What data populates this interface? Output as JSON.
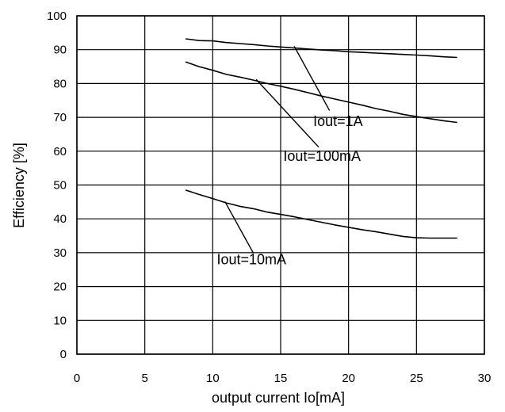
{
  "chart_data": {
    "type": "line",
    "xlabel": "output current Io[mA]",
    "ylabel": "Efficiency [%]",
    "xlim": [
      0,
      30
    ],
    "ylim": [
      0,
      100
    ],
    "xticks": [
      0,
      5,
      10,
      15,
      20,
      25,
      30
    ],
    "yticks": [
      0,
      10,
      20,
      30,
      40,
      50,
      60,
      70,
      80,
      90,
      100
    ],
    "grid": true,
    "series": [
      {
        "x": [
          8,
          9,
          10,
          11,
          12,
          13,
          14,
          15,
          16,
          17,
          18,
          19,
          20,
          21,
          22,
          23,
          24,
          25,
          26,
          27,
          28
        ],
        "y": [
          93.2,
          92.7,
          92.6,
          92.1,
          91.8,
          91.5,
          91.1,
          90.8,
          90.5,
          90.2,
          89.9,
          89.7,
          89.4,
          89.2,
          89.0,
          88.8,
          88.6,
          88.4,
          88.2,
          87.9,
          87.7
        ]
      },
      {
        "x": [
          8,
          9,
          10,
          11,
          12,
          13,
          14,
          15,
          16,
          17,
          18,
          19,
          20,
          21,
          22,
          23,
          24,
          25,
          26,
          27,
          28
        ],
        "y": [
          86.4,
          85.0,
          83.9,
          82.7,
          81.9,
          81.0,
          80.0,
          79.2,
          78.3,
          77.3,
          76.3,
          75.4,
          74.5,
          73.6,
          72.6,
          71.8,
          70.9,
          70.2,
          69.6,
          69.0,
          68.5
        ]
      },
      {
        "x": [
          8,
          9,
          10,
          11,
          12,
          13,
          14,
          15,
          16,
          17,
          18,
          19,
          20,
          21,
          22,
          23,
          24,
          25,
          26,
          27,
          28
        ],
        "y": [
          48.5,
          47.2,
          46.0,
          44.7,
          43.7,
          43.0,
          42.0,
          41.3,
          40.6,
          39.8,
          39.0,
          38.2,
          37.5,
          36.8,
          36.2,
          35.5,
          34.8,
          34.4,
          34.3,
          34.3,
          34.3
        ]
      }
    ],
    "annotations": [
      {
        "text": "Iout=1A",
        "x": 17.4,
        "y": 67.4,
        "from": [
          16.0,
          91.0
        ],
        "to": [
          18.6,
          72.0
        ]
      },
      {
        "text": "Iout=100mA",
        "x": 15.2,
        "y": 57.1,
        "from": [
          13.2,
          81.2
        ],
        "to": [
          17.8,
          61.2
        ]
      },
      {
        "text": "Iout=10mA",
        "x": 10.3,
        "y": 26.6,
        "from": [
          10.9,
          45.1
        ],
        "to": [
          13.0,
          29.8
        ]
      }
    ]
  }
}
